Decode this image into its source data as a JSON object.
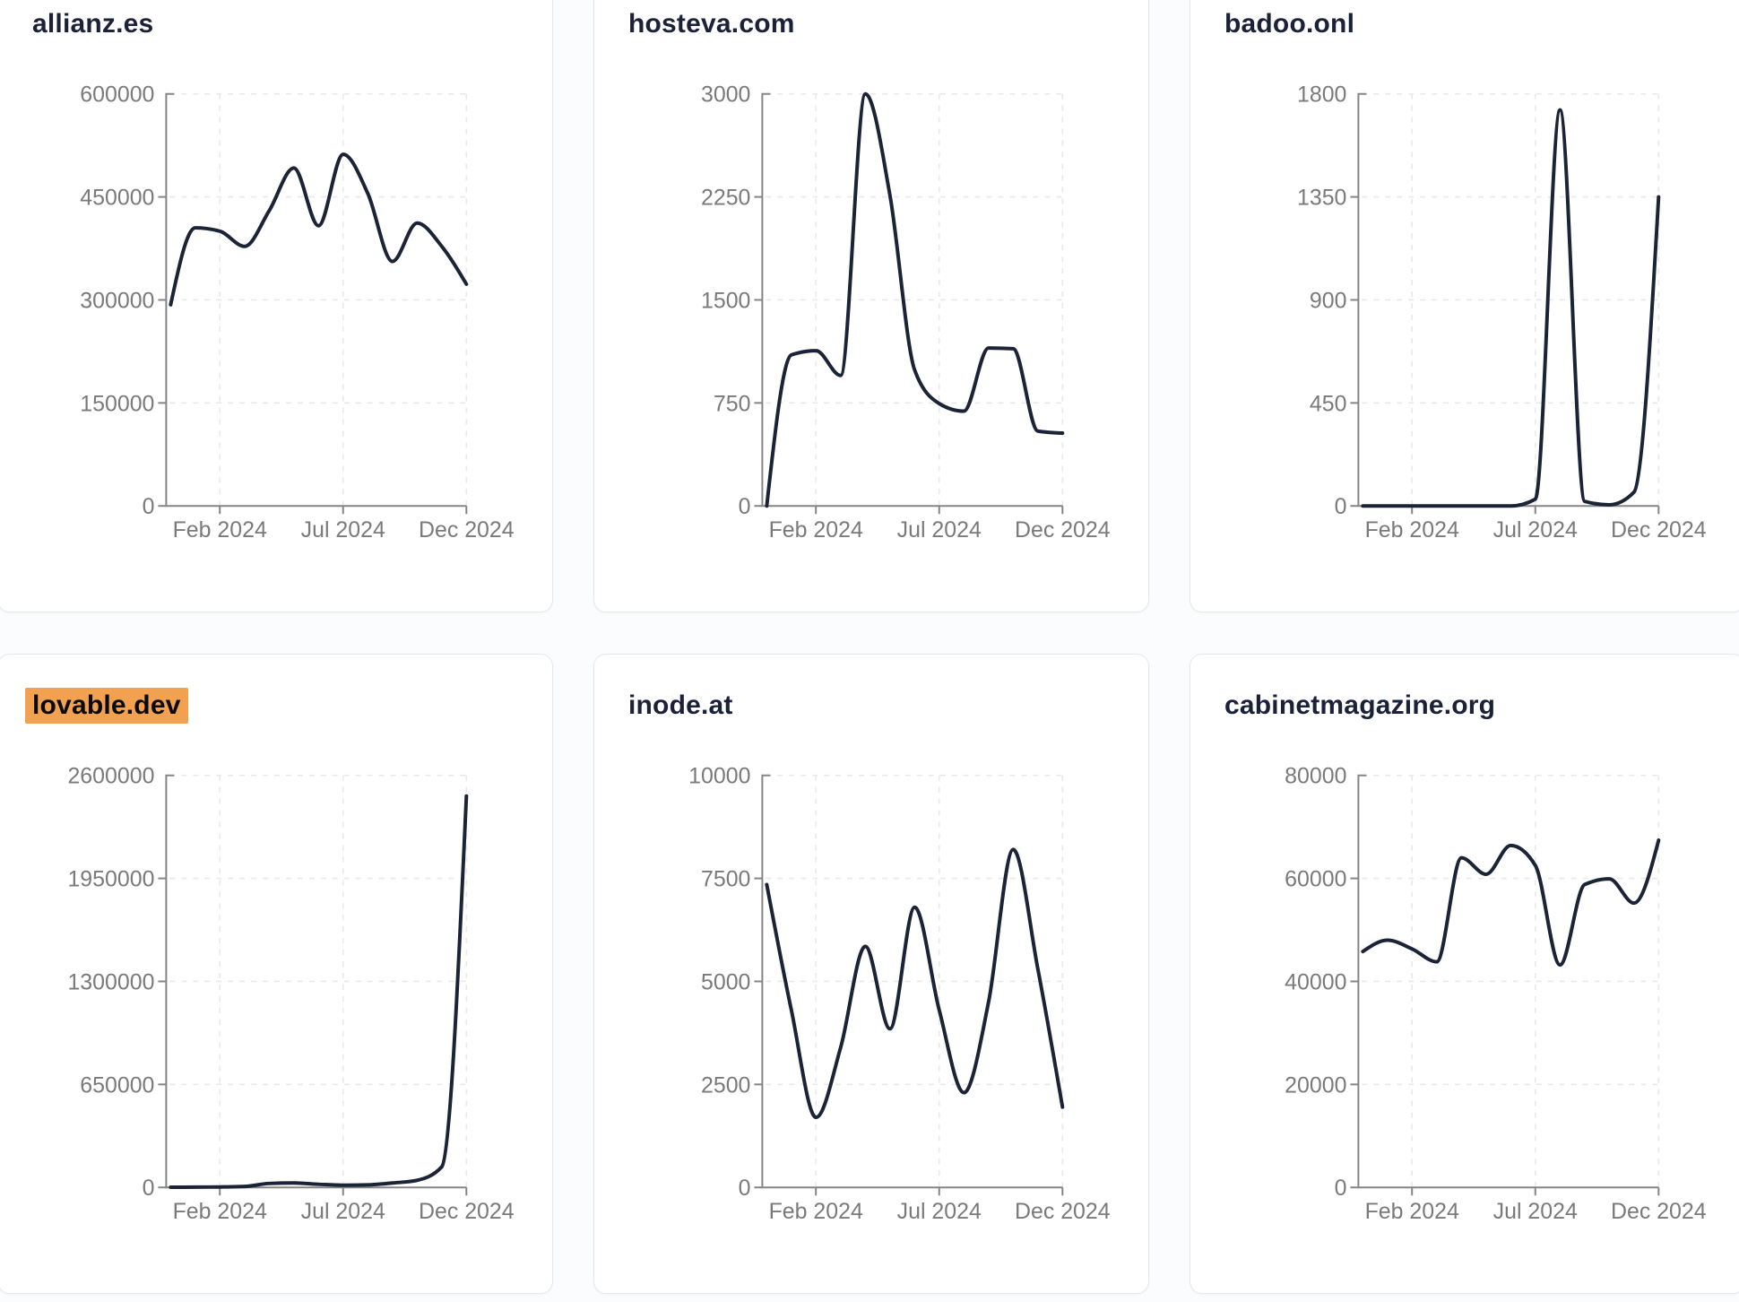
{
  "style": {
    "line_color": "#1b2336",
    "title_color": "#1a2139",
    "highlight_bg": "#f1a150",
    "highlight_text": "#0a0a0a",
    "tick_text_color": "#7a7a7a",
    "axis_color": "#858585",
    "grid_color": "#e9e9e9",
    "card_border": "#e3e9f1",
    "card_bg": "#ffffff",
    "page_bg": "#fbfcfd"
  },
  "x_axis": {
    "tick_labels": [
      "Feb 2024",
      "Jul 2024",
      "Dec 2024"
    ]
  },
  "chart_data": [
    {
      "type": "line",
      "title": "allianz.es",
      "highlight": false,
      "x": [
        "Dec 2023",
        "Jan 2024",
        "Feb 2024",
        "Mar 2024",
        "Apr 2024",
        "May 2024",
        "Jun 2024",
        "Jul 2024",
        "Aug 2024",
        "Sep 2024",
        "Oct 2024",
        "Nov 2024",
        "Dec 2024"
      ],
      "values": [
        293000,
        405000,
        400000,
        378000,
        430000,
        492000,
        408000,
        512000,
        455000,
        356000,
        412000,
        378000,
        323000
      ],
      "ylim": [
        0,
        600000
      ],
      "y_ticks": [
        600000,
        450000,
        300000,
        150000,
        0
      ],
      "y_tick_labels": [
        "600000",
        "450000",
        "300000",
        "150000",
        "0"
      ],
      "x_tick_labels": [
        "Feb 2024",
        "Jul 2024",
        "Dec 2024"
      ],
      "grid": true,
      "legend": false
    },
    {
      "type": "line",
      "title": "hosteva.com",
      "highlight": false,
      "x": [
        "Dec 2023",
        "Jan 2024",
        "Feb 2024",
        "Mar 2024",
        "Apr 2024",
        "May 2024",
        "Jun 2024",
        "Jul 2024",
        "Aug 2024",
        "Sep 2024",
        "Oct 2024",
        "Nov 2024",
        "Dec 2024"
      ],
      "values": [
        0,
        1100,
        1130,
        950,
        3000,
        2260,
        990,
        745,
        690,
        1150,
        1145,
        545,
        530
      ],
      "ylim": [
        0,
        3000
      ],
      "y_ticks": [
        3000,
        2250,
        1500,
        750,
        0
      ],
      "y_tick_labels": [
        "3000",
        "2250",
        "1500",
        "750",
        "0"
      ],
      "x_tick_labels": [
        "Feb 2024",
        "Jul 2024",
        "Dec 2024"
      ],
      "grid": true,
      "legend": false
    },
    {
      "type": "line",
      "title": "badoo.onl",
      "highlight": false,
      "x": [
        "Dec 2023",
        "Jan 2024",
        "Feb 2024",
        "Mar 2024",
        "Apr 2024",
        "May 2024",
        "Jun 2024",
        "Jul 2024",
        "Aug 2024",
        "Sep 2024",
        "Oct 2024",
        "Nov 2024",
        "Dec 2024"
      ],
      "values": [
        0,
        0,
        0,
        0,
        0,
        0,
        0,
        30,
        1730,
        20,
        5,
        60,
        1350
      ],
      "ylim": [
        0,
        1800
      ],
      "y_ticks": [
        1800,
        1350,
        900,
        450,
        0
      ],
      "y_tick_labels": [
        "1800",
        "1350",
        "900",
        "450",
        "0"
      ],
      "x_tick_labels": [
        "Feb 2024",
        "Jul 2024",
        "Dec 2024"
      ],
      "grid": true,
      "legend": false
    },
    {
      "type": "line",
      "title": "lovable.dev",
      "highlight": true,
      "x": [
        "Dec 2023",
        "Jan 2024",
        "Feb 2024",
        "Mar 2024",
        "Apr 2024",
        "May 2024",
        "Jun 2024",
        "Jul 2024",
        "Aug 2024",
        "Sep 2024",
        "Oct 2024",
        "Nov 2024",
        "Dec 2024"
      ],
      "values": [
        1000,
        2000,
        3000,
        6000,
        25000,
        28000,
        20000,
        14000,
        16000,
        28000,
        45000,
        130000,
        2470000
      ],
      "ylim": [
        0,
        2600000
      ],
      "y_ticks": [
        2600000,
        1950000,
        1300000,
        650000,
        0
      ],
      "y_tick_labels": [
        "2600000",
        "1950000",
        "1300000",
        "650000",
        "0"
      ],
      "x_tick_labels": [
        "Feb 2024",
        "Jul 2024",
        "Dec 2024"
      ],
      "grid": true,
      "legend": false
    },
    {
      "type": "line",
      "title": "inode.at",
      "highlight": false,
      "x": [
        "Dec 2023",
        "Jan 2024",
        "Feb 2024",
        "Mar 2024",
        "Apr 2024",
        "May 2024",
        "Jun 2024",
        "Jul 2024",
        "Aug 2024",
        "Sep 2024",
        "Oct 2024",
        "Nov 2024",
        "Dec 2024"
      ],
      "values": [
        7350,
        4300,
        1700,
        3400,
        5850,
        3850,
        6800,
        4300,
        2300,
        4500,
        8200,
        5300,
        1950
      ],
      "ylim": [
        0,
        10000
      ],
      "y_ticks": [
        10000,
        7500,
        5000,
        2500,
        0
      ],
      "y_tick_labels": [
        "10000",
        "7500",
        "5000",
        "2500",
        "0"
      ],
      "x_tick_labels": [
        "Feb 2024",
        "Jul 2024",
        "Dec 2024"
      ],
      "grid": true,
      "legend": false
    },
    {
      "type": "line",
      "title": "cabinetmagazine.org",
      "highlight": false,
      "x": [
        "Dec 2023",
        "Jan 2024",
        "Feb 2024",
        "Mar 2024",
        "Apr 2024",
        "May 2024",
        "Jun 2024",
        "Jul 2024",
        "Aug 2024",
        "Sep 2024",
        "Oct 2024",
        "Nov 2024",
        "Dec 2024"
      ],
      "values": [
        45800,
        48000,
        46300,
        43800,
        64000,
        60800,
        66400,
        62500,
        43200,
        58800,
        59900,
        55200,
        67400
      ],
      "ylim": [
        0,
        80000
      ],
      "y_ticks": [
        80000,
        60000,
        40000,
        20000,
        0
      ],
      "y_tick_labels": [
        "80000",
        "60000",
        "40000",
        "20000",
        "0"
      ],
      "x_tick_labels": [
        "Feb 2024",
        "Jul 2024",
        "Dec 2024"
      ],
      "grid": true,
      "legend": false
    }
  ]
}
